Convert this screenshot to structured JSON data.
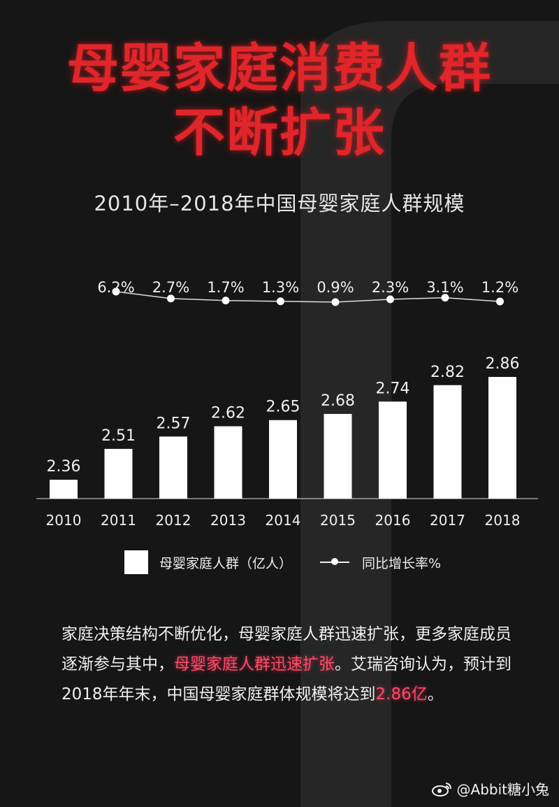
{
  "headline": {
    "line1": "母婴家庭消费人群",
    "line2": "不断扩张"
  },
  "chart_data": {
    "type": "bar",
    "title": "2010年–2018年中国母婴家庭人群规模",
    "categories": [
      "2010",
      "2011",
      "2012",
      "2013",
      "2014",
      "2015",
      "2016",
      "2017",
      "2018"
    ],
    "series": [
      {
        "name": "母婴家庭人群（亿人）",
        "type": "bar",
        "values": [
          2.36,
          2.51,
          2.57,
          2.62,
          2.65,
          2.68,
          2.74,
          2.82,
          2.86
        ],
        "labels": [
          "2.36",
          "2.51",
          "2.57",
          "2.62",
          "2.65",
          "2.68",
          "2.74",
          "2.82",
          "2.86"
        ]
      },
      {
        "name": "同比增长率%",
        "type": "line",
        "x": [
          "2011",
          "2012",
          "2013",
          "2014",
          "2015",
          "2016",
          "2017",
          "2018"
        ],
        "values": [
          6.2,
          2.7,
          1.7,
          1.3,
          0.9,
          2.3,
          3.1,
          1.2
        ],
        "labels": [
          "6.2%",
          "2.7%",
          "1.7%",
          "1.3%",
          "0.9%",
          "2.3%",
          "3.1%",
          "1.2%"
        ]
      }
    ],
    "grid": false,
    "legend_position": "bottom"
  },
  "description": {
    "part1": "家庭决策结构不断优化，母婴家庭人群迅速扩张，更多家庭成员逐渐参与其中，",
    "highlight1": "母婴家庭人群迅速扩张",
    "part2": "。艾瑞咨询认为，预计到2018年年末，中国母婴家庭群体规模将达到",
    "highlight2": "2.86亿",
    "part3": "。"
  },
  "watermark": "@Abbit糖小兔",
  "colors": {
    "background": "#161616",
    "headline": "#e0262a",
    "highlight": "#ff4a6a",
    "bars": "#ffffff"
  }
}
